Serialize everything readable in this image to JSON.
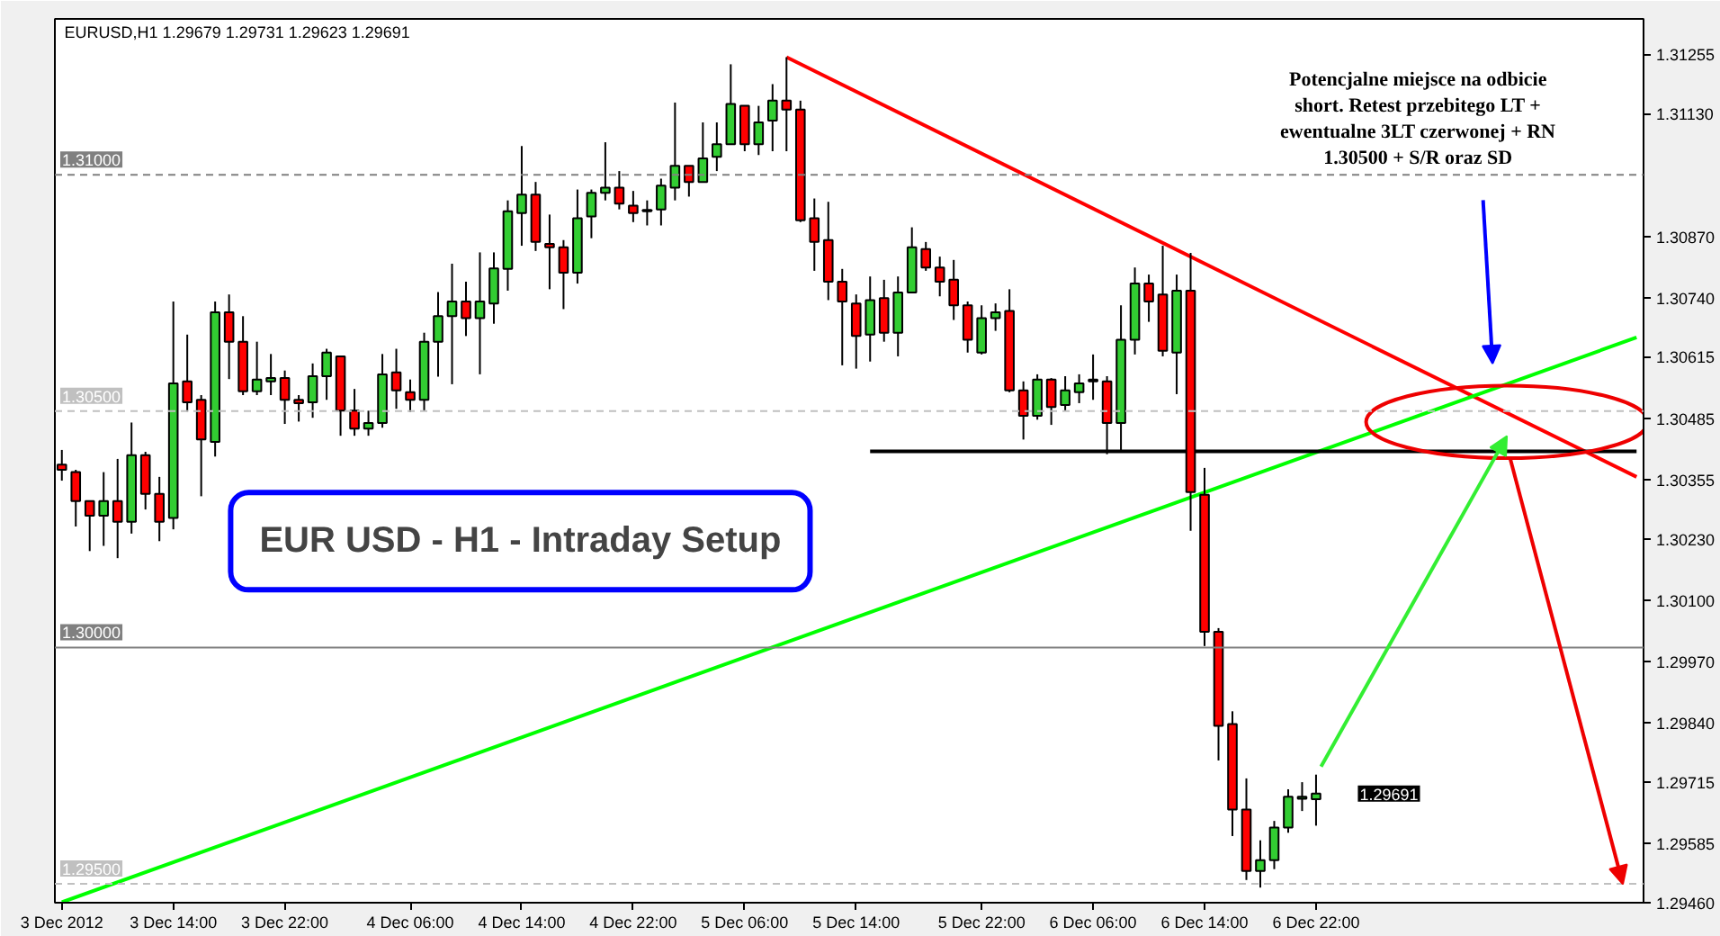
{
  "chart_data": {
    "type": "candlestick",
    "title": "EURUSD,H1  1.29679 1.29731 1.29623 1.29691",
    "categories": [
      "3 Dec 2012",
      null,
      null,
      null,
      null,
      null,
      null,
      null,
      "3 Dec 14:00",
      null,
      null,
      null,
      null,
      null,
      null,
      null,
      "3 Dec 22:00",
      null,
      null,
      null,
      null,
      null,
      null,
      null,
      null,
      "4 Dec 06:00",
      null,
      null,
      null,
      null,
      null,
      null,
      null,
      "4 Dec 14:00",
      null,
      null,
      null,
      null,
      null,
      null,
      null,
      "4 Dec 22:00",
      null,
      null,
      null,
      null,
      null,
      null,
      null,
      "5 Dec 06:00",
      null,
      null,
      null,
      null,
      null,
      null,
      null,
      "5 Dec 14:00",
      null,
      null,
      null,
      null,
      null,
      null,
      null,
      null,
      "5 Dec 22:00",
      null,
      null,
      null,
      null,
      null,
      null,
      null,
      "6 Dec 06:00",
      null,
      null,
      null,
      null,
      null,
      null,
      null,
      "6 Dec 14:00",
      null,
      null,
      null,
      null,
      null,
      null,
      null,
      "6 Dec 22:00",
      null,
      null,
      null,
      null,
      null,
      null,
      null,
      null,
      null,
      null,
      null,
      null,
      null,
      null,
      null,
      null,
      null,
      null,
      null,
      null,
      null,
      null,
      null
    ],
    "ohlc": [
      [
        1.30387,
        1.30418,
        1.30353,
        1.30376
      ],
      [
        1.30371,
        1.30376,
        1.30256,
        1.3031
      ],
      [
        1.3031,
        1.30311,
        1.30204,
        1.30279
      ],
      [
        1.30279,
        1.30371,
        1.30215,
        1.3031
      ],
      [
        1.3031,
        1.30399,
        1.30189,
        1.30266
      ],
      [
        1.30266,
        1.30476,
        1.30241,
        1.30407
      ],
      [
        1.30407,
        1.30414,
        1.30292,
        1.30325
      ],
      [
        1.30325,
        1.30361,
        1.30225,
        1.30266
      ],
      [
        1.30274,
        1.30732,
        1.3025,
        1.30559
      ],
      [
        1.30563,
        1.30662,
        1.30499,
        1.30519
      ],
      [
        1.30524,
        1.30534,
        1.3032,
        1.3044
      ],
      [
        1.30435,
        1.30732,
        1.30404,
        1.30709
      ],
      [
        1.30709,
        1.30747,
        1.30568,
        1.30647
      ],
      [
        1.30647,
        1.30701,
        1.30534,
        1.30542
      ],
      [
        1.30542,
        1.30647,
        1.30534,
        1.30567
      ],
      [
        1.30563,
        1.30621,
        1.30534,
        1.3057
      ],
      [
        1.3057,
        1.30586,
        1.30473,
        1.30524
      ],
      [
        1.30524,
        1.30534,
        1.30478,
        1.30517
      ],
      [
        1.30519,
        1.30601,
        1.30486,
        1.30574
      ],
      [
        1.30574,
        1.30632,
        1.30524,
        1.30624
      ],
      [
        1.30616,
        1.30616,
        1.30448,
        1.30501
      ],
      [
        1.30501,
        1.30547,
        1.30448,
        1.30463
      ],
      [
        1.30463,
        1.30501,
        1.30448,
        1.30475
      ],
      [
        1.30475,
        1.30621,
        1.30465,
        1.30578
      ],
      [
        1.30582,
        1.30632,
        1.30505,
        1.30544
      ],
      [
        1.3054,
        1.30567,
        1.30498,
        1.30524
      ],
      [
        1.30524,
        1.30666,
        1.30501,
        1.30647
      ],
      [
        1.30647,
        1.30752,
        1.30573,
        1.30701
      ],
      [
        1.30701,
        1.30812,
        1.30557,
        1.30732
      ],
      [
        1.30732,
        1.30774,
        1.30659,
        1.30697
      ],
      [
        1.30697,
        1.30836,
        1.30578,
        1.30732
      ],
      [
        1.30728,
        1.30836,
        1.30685,
        1.30802
      ],
      [
        1.30801,
        1.30946,
        1.30755,
        1.30923
      ],
      [
        1.30919,
        1.31061,
        1.3085,
        1.30958
      ],
      [
        1.30958,
        1.30985,
        1.30839,
        1.30858
      ],
      [
        1.30854,
        1.30916,
        1.30758,
        1.30847
      ],
      [
        1.30847,
        1.30862,
        1.30716,
        1.30793
      ],
      [
        1.30793,
        1.30969,
        1.3077,
        1.30908
      ],
      [
        1.30912,
        1.30969,
        1.30866,
        1.30962
      ],
      [
        1.30962,
        1.31069,
        1.30946,
        1.30973
      ],
      [
        1.30973,
        1.31008,
        1.30927,
        1.30939
      ],
      [
        1.30935,
        1.30966,
        1.309,
        1.30919
      ],
      [
        1.30923,
        1.30946,
        1.30893,
        1.30926
      ],
      [
        1.30927,
        1.30992,
        1.30893,
        1.30977
      ],
      [
        1.30973,
        1.31153,
        1.30946,
        1.31019
      ],
      [
        1.31019,
        1.31019,
        1.30954,
        1.30985
      ],
      [
        1.30985,
        1.31111,
        1.30985,
        1.31035
      ],
      [
        1.31038,
        1.31111,
        1.31008,
        1.31065
      ],
      [
        1.31065,
        1.31234,
        1.31065,
        1.3115
      ],
      [
        1.31146,
        1.31146,
        1.3105,
        1.31065
      ],
      [
        1.31065,
        1.31146,
        1.31042,
        1.31111
      ],
      [
        1.31115,
        1.31192,
        1.3105,
        1.31157
      ],
      [
        1.31157,
        1.31249,
        1.3105,
        1.31138
      ],
      [
        1.31138,
        1.31157,
        1.309,
        1.30904
      ],
      [
        1.30908,
        1.3095,
        1.30797,
        1.30858
      ],
      [
        1.30862,
        1.30943,
        1.30735,
        1.30774
      ],
      [
        1.30774,
        1.30801,
        1.30597,
        1.30732
      ],
      [
        1.30728,
        1.30747,
        1.3059,
        1.30659
      ],
      [
        1.30662,
        1.30785,
        1.30605,
        1.30735
      ],
      [
        1.30739,
        1.30778,
        1.30647,
        1.30666
      ],
      [
        1.30666,
        1.30785,
        1.30616,
        1.30751
      ],
      [
        1.30751,
        1.30889,
        1.30751,
        1.30847
      ],
      [
        1.30843,
        1.30858,
        1.30797,
        1.30804
      ],
      [
        1.30804,
        1.30827,
        1.30743,
        1.30774
      ],
      [
        1.30778,
        1.3082,
        1.30693,
        1.30724
      ],
      [
        1.30724,
        1.30732,
        1.30624,
        1.30651
      ],
      [
        1.30624,
        1.30724,
        1.3062,
        1.30697
      ],
      [
        1.30697,
        1.30728,
        1.3067,
        1.30709
      ],
      [
        1.30712,
        1.30758,
        1.3054,
        1.30544
      ],
      [
        1.30544,
        1.30563,
        1.3044,
        1.3049
      ],
      [
        1.3049,
        1.30578,
        1.30482,
        1.30567
      ],
      [
        1.30567,
        1.3057,
        1.30471,
        1.30509
      ],
      [
        1.30513,
        1.30574,
        1.30501,
        1.30544
      ],
      [
        1.3054,
        1.30578,
        1.30517,
        1.30559
      ],
      [
        1.30563,
        1.3062,
        1.30524,
        1.30567
      ],
      [
        1.30563,
        1.30574,
        1.30409,
        1.30475
      ],
      [
        1.30475,
        1.30724,
        1.30417,
        1.30651
      ],
      [
        1.30651,
        1.30804,
        1.3062,
        1.3077
      ],
      [
        1.3077,
        1.30789,
        1.30689,
        1.30732
      ],
      [
        1.30747,
        1.3085,
        1.30616,
        1.30628
      ],
      [
        1.30624,
        1.30789,
        1.30536,
        1.30755
      ],
      [
        1.30755,
        1.30835,
        1.30247,
        1.30329
      ],
      [
        1.30323,
        1.3038,
        1.30003,
        1.30033
      ],
      [
        1.30033,
        1.30041,
        1.29761,
        1.29834
      ],
      [
        1.29838,
        1.29865,
        1.29601,
        1.29657
      ],
      [
        1.29657,
        1.29723,
        1.29508,
        1.29527
      ],
      [
        1.29527,
        1.29592,
        1.29492,
        1.2955
      ],
      [
        1.2955,
        1.29633,
        1.29531,
        1.29619
      ],
      [
        1.29619,
        1.297,
        1.29608,
        1.29684
      ],
      [
        1.2968,
        1.29715,
        1.29654,
        1.29684
      ],
      [
        1.29679,
        1.29731,
        1.29623,
        1.29691
      ],
      null,
      null,
      null,
      null,
      null,
      null,
      null,
      null,
      null,
      null,
      null,
      null,
      null,
      null,
      null,
      null,
      null,
      null,
      null,
      null,
      null,
      null,
      null
    ],
    "colors": [
      "#ff0000",
      "#ff0000",
      "#ff0000",
      "#32cd32",
      "#ff0000",
      "#32cd32",
      "#ff0000",
      "#ff0000",
      "#32cd32",
      "#ff0000",
      "#ff0000",
      "#32cd32",
      "#ff0000",
      "#ff0000",
      "#32cd32",
      "#32cd32",
      "#ff0000",
      "#ff0000",
      "#32cd32",
      "#32cd32",
      "#ff0000",
      "#ff0000",
      "#32cd32",
      "#32cd32",
      "#ff0000",
      "#ff0000",
      "#32cd32",
      "#32cd32",
      "#32cd32",
      "#ff0000",
      "#32cd32",
      "#32cd32",
      "#32cd32",
      "#32cd32",
      "#ff0000",
      "#ff0000",
      "#ff0000",
      "#32cd32",
      "#32cd32",
      "#32cd32",
      "#ff0000",
      "#ff0000",
      "#32cd32",
      "#32cd32",
      "#32cd32",
      "#ff0000",
      "#32cd32",
      "#32cd32",
      "#32cd32",
      "#ff0000",
      "#32cd32",
      "#32cd32",
      "#ff0000",
      "#ff0000",
      "#ff0000",
      "#ff0000",
      "#ff0000",
      "#ff0000",
      "#32cd32",
      "#ff0000",
      "#32cd32",
      "#32cd32",
      "#ff0000",
      "#ff0000",
      "#ff0000",
      "#ff0000",
      "#32cd32",
      "#32cd32",
      "#ff0000",
      "#ff0000",
      "#32cd32",
      "#ff0000",
      "#32cd32",
      "#32cd32",
      "#32cd32",
      "#ff0000",
      "#32cd32",
      "#32cd32",
      "#ff0000",
      "#ff0000",
      "#32cd32",
      "#ff0000",
      "#ff0000",
      "#ff0000",
      "#ff0000",
      "#ff0000",
      "#32cd32",
      "#32cd32",
      "#32cd32",
      "#32cd32",
      "#32cd32",
      null,
      null,
      null,
      null,
      null,
      null,
      null,
      null,
      null,
      null,
      null,
      null,
      null,
      null,
      null,
      null,
      null,
      null,
      null,
      null,
      null,
      null,
      null
    ],
    "series": [
      {
        "type": "line",
        "values": [
          null,
          null,
          null,
          null,
          null,
          null,
          null,
          null,
          null,
          null,
          null,
          null,
          null,
          null,
          null,
          null,
          null,
          null,
          null,
          null,
          null,
          null,
          null,
          null,
          null,
          null,
          null,
          null,
          null,
          null,
          null,
          null,
          null,
          null,
          null,
          null,
          null,
          null,
          null,
          null,
          null,
          null,
          null,
          null,
          null,
          null,
          null,
          null,
          null,
          null,
          null,
          null,
          1.31249,
          null,
          null,
          null,
          null,
          null,
          null,
          null,
          null,
          null,
          null,
          null,
          null,
          null,
          null,
          null,
          null,
          null,
          null,
          null,
          null,
          null,
          null,
          null,
          null,
          null,
          null,
          null,
          null,
          null,
          null,
          null,
          null,
          null,
          null,
          null,
          null,
          null,
          null,
          null,
          null,
          null,
          null,
          null,
          null,
          null,
          null,
          null,
          null,
          null,
          null,
          null,
          null,
          null,
          null,
          null,
          null,
          null,
          null,
          null,
          null,
          1.30361
        ],
        "color": "#ff0000"
      },
      {
        "type": "line",
        "values": [
          1.29461,
          null,
          null,
          null,
          null,
          null,
          null,
          null,
          null,
          null,
          null,
          null,
          null,
          null,
          null,
          null,
          null,
          null,
          null,
          null,
          null,
          null,
          null,
          null,
          null,
          null,
          null,
          null,
          null,
          null,
          null,
          null,
          null,
          null,
          null,
          null,
          null,
          null,
          null,
          null,
          null,
          null,
          null,
          null,
          null,
          null,
          null,
          null,
          null,
          null,
          null,
          null,
          null,
          null,
          null,
          null,
          null,
          null,
          null,
          null,
          null,
          null,
          null,
          null,
          null,
          null,
          null,
          null,
          null,
          null,
          null,
          null,
          null,
          null,
          null,
          null,
          null,
          null,
          null,
          null,
          null,
          null,
          null,
          null,
          null,
          null,
          null,
          null,
          null,
          null,
          null,
          null,
          null,
          null,
          null,
          null,
          null,
          null,
          null,
          null,
          null,
          null,
          null,
          null,
          null,
          null,
          null,
          null,
          null,
          null,
          null,
          null,
          null,
          1.30656
        ],
        "color": "#00ff00"
      },
      {
        "type": "line",
        "values": [
          null,
          null,
          null,
          null,
          null,
          null,
          null,
          null,
          null,
          null,
          null,
          null,
          null,
          null,
          null,
          null,
          null,
          null,
          null,
          null,
          null,
          null,
          null,
          null,
          null,
          null,
          null,
          null,
          null,
          null,
          null,
          null,
          null,
          null,
          null,
          null,
          null,
          null,
          null,
          null,
          null,
          null,
          null,
          null,
          null,
          null,
          null,
          null,
          null,
          null,
          null,
          null,
          null,
          null,
          null,
          null,
          null,
          null,
          1.30415,
          null,
          null,
          null,
          null,
          null,
          null,
          null,
          null,
          null,
          null,
          null,
          null,
          null,
          null,
          null,
          null,
          null,
          null,
          null,
          null,
          null,
          null,
          null,
          null,
          null,
          null,
          null,
          null,
          null,
          null,
          null,
          null,
          null,
          null,
          null,
          null,
          null,
          null,
          null,
          null,
          null,
          null,
          null,
          null,
          null,
          null,
          null,
          null,
          null,
          null,
          null,
          null,
          null,
          null,
          1.30415
        ],
        "color": "#000000"
      }
    ],
    "ylim": [
      1.2946,
      1.3133
    ],
    "yticks": [
      {
        "value": 1.31255,
        "label": "1.31255"
      },
      {
        "value": 1.3113,
        "label": "1.31130"
      },
      {
        "value": 1.3087,
        "label": "1.30870"
      },
      {
        "value": 1.3074,
        "label": "1.30740"
      },
      {
        "value": 1.30615,
        "label": "1.30615"
      },
      {
        "value": 1.30485,
        "label": "1.30485"
      },
      {
        "value": 1.30355,
        "label": "1.30355"
      },
      {
        "value": 1.3023,
        "label": "1.30230"
      },
      {
        "value": 1.301,
        "label": "1.30100"
      },
      {
        "value": 1.2997,
        "label": "1.29970"
      },
      {
        "value": 1.2984,
        "label": "1.29840"
      },
      {
        "value": 1.29715,
        "label": "1.29715"
      },
      {
        "value": 1.29585,
        "label": "1.29585"
      },
      {
        "value": 1.2946,
        "label": "1.29460"
      }
    ],
    "ref_lines": [
      {
        "axis": "y",
        "value": 1.31,
        "label": "1.31000",
        "color": "#808080",
        "line_style": "dashed"
      },
      {
        "axis": "y",
        "value": 1.305,
        "label": "1.30500",
        "color": "#c0c0c0",
        "line_style": "dashed"
      },
      {
        "axis": "y",
        "value": 1.3,
        "label": "1.30000",
        "color": "#808080",
        "line_style": "solid"
      },
      {
        "axis": "y",
        "value": 1.295,
        "label": "1.29500",
        "color": "#c0c0c0",
        "line_style": "dashed"
      }
    ],
    "annotations": [
      "EUR USD - H1 - Intraday Setup",
      "Potencjalne miejsce na odbicie short. Retest przebitego LT + ewentualne 3LT czerwonej + RN 1.30500 + S/R oraz SD",
      "1.29691"
    ],
    "grid": false
  }
}
